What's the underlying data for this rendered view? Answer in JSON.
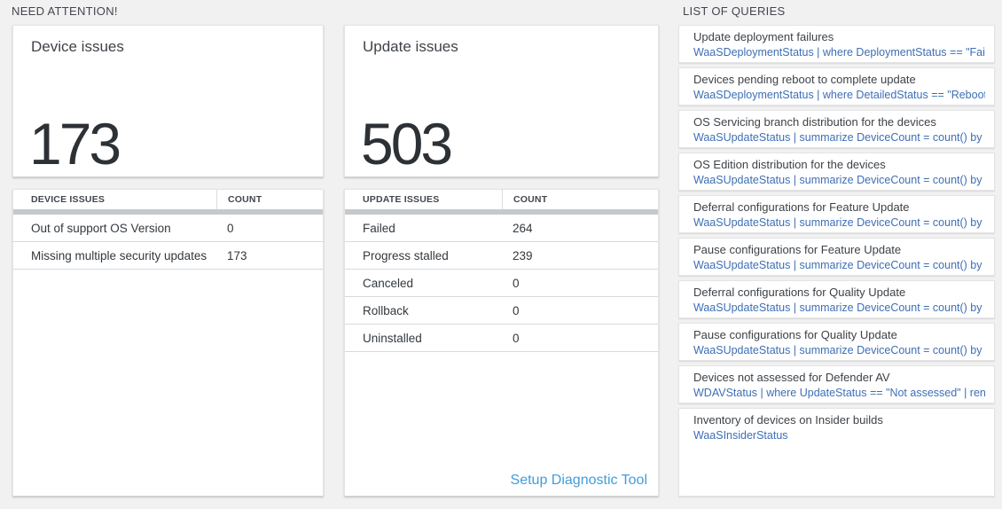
{
  "sections": {
    "need_attention": "NEED ATTENTION!",
    "list_of_queries": "LIST OF QUERIES"
  },
  "device_card": {
    "title": "Device issues",
    "count": "173"
  },
  "device_table": {
    "headers": {
      "issue": "DEVICE ISSUES",
      "count": "COUNT"
    },
    "rows": [
      {
        "label": "Out of support OS Version",
        "count": "0"
      },
      {
        "label": "Missing multiple security updates",
        "count": "173"
      }
    ]
  },
  "update_card": {
    "title": "Update issues",
    "count": "503"
  },
  "update_table": {
    "headers": {
      "issue": "UPDATE ISSUES",
      "count": "COUNT"
    },
    "rows": [
      {
        "label": "Failed",
        "count": "264"
      },
      {
        "label": "Progress stalled",
        "count": "239"
      },
      {
        "label": "Canceled",
        "count": "0"
      },
      {
        "label": "Rollback",
        "count": "0"
      },
      {
        "label": "Uninstalled",
        "count": "0"
      }
    ],
    "link": "Setup Diagnostic Tool"
  },
  "queries": [
    {
      "title": "Update deployment failures",
      "query": "WaaSDeploymentStatus | where DeploymentStatus == \"Failed\" |..."
    },
    {
      "title": "Devices pending reboot to complete update",
      "query": "WaaSDeploymentStatus | where DetailedStatus == \"Reboot pend..."
    },
    {
      "title": "OS Servicing branch distribution for the devices",
      "query": "WaaSUpdateStatus | summarize DeviceCount = count() by OSSer..."
    },
    {
      "title": "OS Edition distribution for the devices",
      "query": "WaaSUpdateStatus | summarize DeviceCount = count() by OSEdit..."
    },
    {
      "title": "Deferral configurations for Feature Update",
      "query": "WaaSUpdateStatus | summarize DeviceCount = count() by Featur..."
    },
    {
      "title": "Pause configurations for Feature Update",
      "query": "WaaSUpdateStatus | summarize DeviceCount = count() by Featur..."
    },
    {
      "title": "Deferral configurations for Quality Update",
      "query": "WaaSUpdateStatus | summarize DeviceCount = count() by Qualit..."
    },
    {
      "title": "Pause configurations for Quality Update",
      "query": "WaaSUpdateStatus | summarize DeviceCount = count() by Qualit..."
    },
    {
      "title": "Devices not assessed for Defender AV",
      "query": "WDAVStatus | where UpdateStatus == \"Not assessed\" | render ta..."
    },
    {
      "title": "Inventory of devices on Insider builds",
      "query": "WaaSInsiderStatus"
    }
  ],
  "colors": {
    "page_background": "#f1f1f1",
    "query_link_blue": "#3d6fb5",
    "diagnostic_link_blue": "#419ddb",
    "table_separator_bar": "#c6c9cb",
    "big_number_text": "#2c3136"
  }
}
